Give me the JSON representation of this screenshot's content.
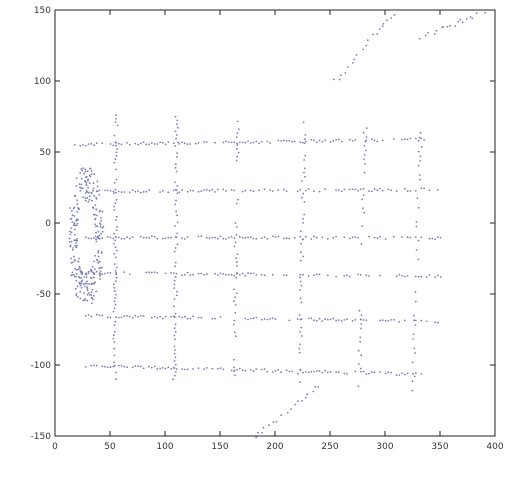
{
  "chart_data": {
    "type": "scatter",
    "title": "",
    "xlabel": "",
    "ylabel": "",
    "xlim": [
      0,
      400
    ],
    "ylim": [
      -150,
      150
    ],
    "xticks": [
      "0",
      "50",
      "100",
      "150",
      "200",
      "250",
      "300",
      "350",
      "400"
    ],
    "yticks": [
      "-150",
      "-100",
      "-50",
      "0",
      "50",
      "100",
      "150"
    ],
    "grid": false,
    "legend": "none",
    "point_color": "#7a7fb3",
    "series": [
      {
        "values_x": [],
        "values_y": []
      }
    ],
    "structure": {
      "description_free": true,
      "vertical_lines_x": [
        55,
        110,
        165,
        225,
        280,
        330
      ],
      "horizontal_lines_y": [
        -100,
        -65,
        -35,
        -10,
        22,
        55
      ],
      "vertical_ranges": [
        {
          "x": 55,
          "y_min": -110,
          "y_max": 78
        },
        {
          "x": 110,
          "y_min": -110,
          "y_max": 78
        },
        {
          "x": 165,
          "y_min": -110,
          "y_max": 75
        },
        {
          "x": 225,
          "y_min": -112,
          "y_max": 72
        },
        {
          "x": 280,
          "y_min": -115,
          "y_max": 68
        },
        {
          "x": 330,
          "y_min": -118,
          "y_max": 64
        }
      ],
      "horizontal_ranges": [
        {
          "y": -100,
          "x_min": 28,
          "x_max": 338
        },
        {
          "y": -65,
          "x_min": 28,
          "x_max": 348
        },
        {
          "y": -35,
          "x_min": 28,
          "x_max": 352
        },
        {
          "y": -10,
          "x_min": 28,
          "x_max": 352
        },
        {
          "y": 22,
          "x_min": 28,
          "x_max": 348
        },
        {
          "y": 55,
          "x_min": 18,
          "x_max": 340
        }
      ],
      "diagonal_dotted_lines": [
        {
          "x1": 182,
          "y1": -150,
          "x2": 240,
          "y2": -115
        },
        {
          "x1": 255,
          "y1": 100,
          "x2": 310,
          "y2": 150
        },
        {
          "x1": 330,
          "y1": 130,
          "x2": 395,
          "y2": 150
        }
      ],
      "left_clutter_region": {
        "x_min": 12,
        "x_max": 45,
        "y_min": -60,
        "y_max": 40
      }
    }
  }
}
